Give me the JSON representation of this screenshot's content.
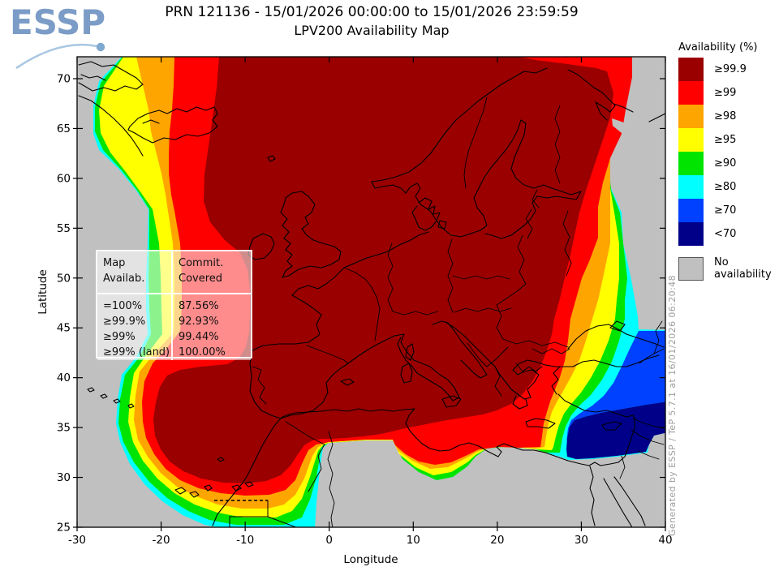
{
  "header": {
    "logo": "ESSP",
    "title_line1": "PRN 121136 - 15/01/2026 00:00:00 to 15/01/2026 23:59:59",
    "title_line2": "LPV200 Availability Map"
  },
  "legend": {
    "title": "Availability (%)",
    "items": [
      {
        "label": "≥99.9",
        "color": "#9a0000"
      },
      {
        "label": "≥99",
        "color": "#ff0000"
      },
      {
        "label": "≥98",
        "color": "#ffa500"
      },
      {
        "label": "≥95",
        "color": "#ffff00"
      },
      {
        "label": "≥90",
        "color": "#00e400"
      },
      {
        "label": "≥80",
        "color": "#00ffff"
      },
      {
        "label": "≥70",
        "color": "#0041ff"
      },
      {
        "label": "<70",
        "color": "#000089"
      }
    ],
    "no_availability": {
      "label": "No availability",
      "color": "#c0c0c0"
    }
  },
  "stats_box": {
    "header_left": [
      "Map",
      "Availab."
    ],
    "header_right": [
      "Commit.",
      "Covered"
    ],
    "rows": [
      {
        "level": "=100%",
        "covered": "87.56%"
      },
      {
        "level": "≥99.9%",
        "covered": "92.93%"
      },
      {
        "level": "≥99%",
        "covered": "99.44%"
      },
      {
        "level": "≥99% (land)",
        "covered": "100.00%"
      }
    ]
  },
  "axes": {
    "x_label": "Longitude",
    "y_label": "Latitude",
    "x_ticks": [
      -30,
      -20,
      -10,
      0,
      10,
      20,
      30,
      40
    ],
    "y_ticks": [
      25,
      30,
      35,
      40,
      45,
      50,
      55,
      60,
      65,
      70
    ]
  },
  "watermark": "Generated by ESSP / TeP 5.7.1 at 16/01/2026 06:20:48",
  "map": {
    "no_data_color": "#c0c0c0"
  }
}
